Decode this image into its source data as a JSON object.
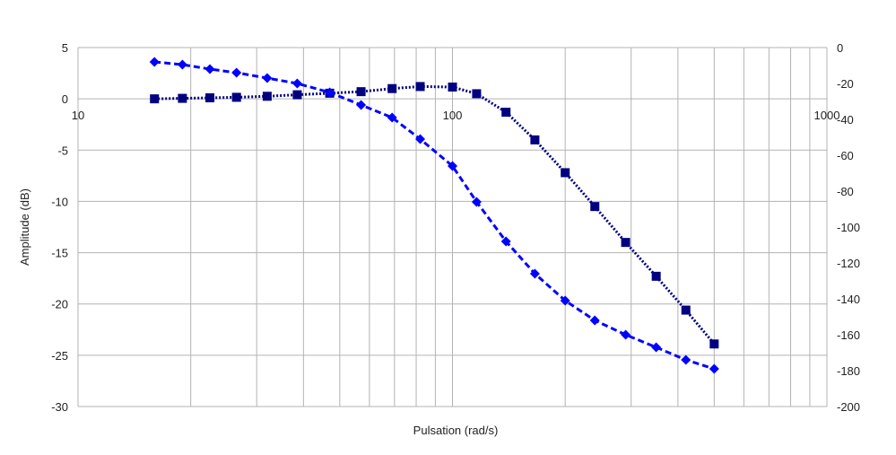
{
  "chart_data": {
    "type": "line",
    "title": "",
    "xlabel": "Pulsation (rad/s)",
    "ylabel": "Amplitude (dB)",
    "y2label": "",
    "x_scale": "log",
    "xlim": [
      10,
      1000
    ],
    "x_ticks": [
      "10",
      "100",
      "1000"
    ],
    "ylim": [
      -30,
      5
    ],
    "y_ticks": [
      "5",
      "0",
      "-5",
      "-10",
      "-15",
      "-20",
      "-25",
      "-30"
    ],
    "y2lim": [
      -200,
      0
    ],
    "y2_ticks": [
      "0",
      "-20",
      "-40",
      "-60",
      "-80",
      "-100",
      "-120",
      "-140",
      "-160",
      "-180",
      "-200"
    ],
    "grid": true,
    "legend": "none",
    "series": [
      {
        "axis": "left",
        "marker": "square",
        "line_style": "dotted",
        "color": "#000080",
        "x": [
          16,
          19,
          22.5,
          26.5,
          32,
          38.5,
          47,
          57,
          69,
          82,
          100,
          116,
          139,
          166,
          200,
          240,
          290,
          350,
          420,
          500
        ],
        "y": [
          0,
          0.05,
          0.1,
          0.15,
          0.25,
          0.4,
          0.55,
          0.7,
          1.0,
          1.2,
          1.15,
          0.5,
          -1.3,
          -4.0,
          -7.2,
          -10.5,
          -14.0,
          -17.3,
          -20.6,
          -23.9
        ]
      },
      {
        "axis": "right",
        "marker": "diamond",
        "line_style": "dashed",
        "color": "#0000ff",
        "x": [
          16,
          19,
          22.5,
          26.5,
          32,
          38.5,
          47,
          57,
          69,
          82,
          100,
          116,
          139,
          166,
          200,
          240,
          290,
          350,
          420,
          500
        ],
        "y": [
          -8,
          -9.5,
          -12,
          -14,
          -17,
          -20,
          -25,
          -32,
          -39,
          -51,
          -66,
          -86,
          -108,
          -126,
          -141,
          -152,
          -160,
          -167,
          -174,
          -179
        ]
      }
    ]
  }
}
